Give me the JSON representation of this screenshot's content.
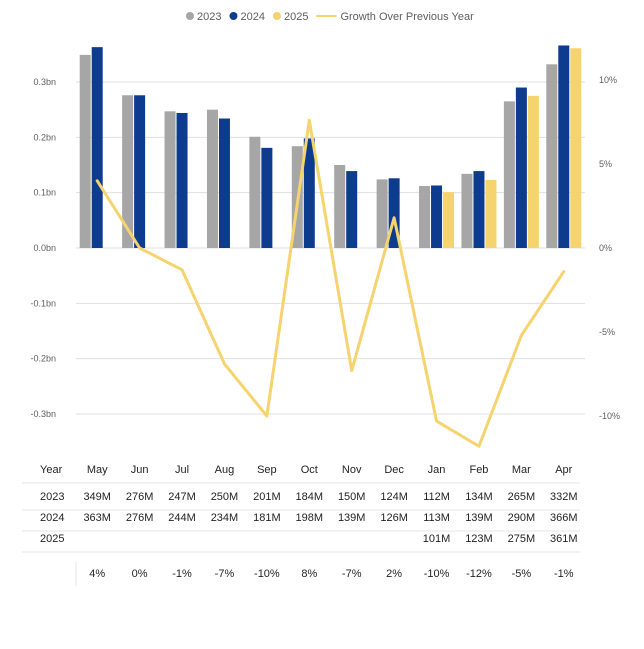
{
  "chart_data": {
    "type": "bar",
    "categories": [
      "May",
      "Jun",
      "Jul",
      "Aug",
      "Sep",
      "Oct",
      "Nov",
      "Dec",
      "Jan",
      "Feb",
      "Mar",
      "Apr"
    ],
    "series": [
      {
        "name": "2023",
        "color": "#a6a6a6",
        "values": [
          349,
          276,
          247,
          250,
          201,
          184,
          150,
          124,
          112,
          134,
          265,
          332
        ]
      },
      {
        "name": "2024",
        "color": "#0d3b8e",
        "values": [
          363,
          276,
          244,
          234,
          181,
          198,
          139,
          126,
          113,
          139,
          290,
          366
        ]
      },
      {
        "name": "2025",
        "color": "#f5d36e",
        "values": [
          null,
          null,
          null,
          null,
          null,
          null,
          null,
          null,
          101,
          123,
          275,
          361
        ]
      }
    ],
    "line": {
      "name": "Growth Over Previous Year",
      "color": "#f5d36e",
      "values": [
        4,
        0,
        -1.3,
        -6.9,
        -10,
        7.6,
        -7.3,
        1.8,
        -10.3,
        -11.8,
        -5.2,
        -1.4
      ]
    },
    "y_left": {
      "ticks": [
        -300,
        -200,
        -100,
        0,
        100,
        200,
        300
      ],
      "labels": [
        "-0.3bn",
        "-0.2bn",
        "-0.1bn",
        "0.0bn",
        "0.1bn",
        "0.2bn",
        "0.3bn"
      ],
      "range": [
        -300,
        360
      ]
    },
    "y_right": {
      "ticks": [
        -10,
        -5,
        0,
        5,
        10
      ],
      "labels": [
        "-10%",
        "-5%",
        "0%",
        "5%",
        "10%"
      ]
    },
    "legend_position": "top-center",
    "table": {
      "header_label": "Year",
      "rows": [
        {
          "label": "2023",
          "cells": [
            "349M",
            "276M",
            "247M",
            "250M",
            "201M",
            "184M",
            "150M",
            "124M",
            "112M",
            "134M",
            "265M",
            "332M"
          ]
        },
        {
          "label": "2024",
          "cells": [
            "363M",
            "276M",
            "244M",
            "234M",
            "181M",
            "198M",
            "139M",
            "126M",
            "113M",
            "139M",
            "290M",
            "366M"
          ]
        },
        {
          "label": "2025",
          "cells": [
            "",
            "",
            "",
            "",
            "",
            "",
            "",
            "",
            "101M",
            "123M",
            "275M",
            "361M"
          ]
        }
      ],
      "growth": [
        "4%",
        "0%",
        "-1%",
        "-7%",
        "-10%",
        "8%",
        "-7%",
        "2%",
        "-10%",
        "-12%",
        "-5%",
        "-1%"
      ]
    }
  }
}
